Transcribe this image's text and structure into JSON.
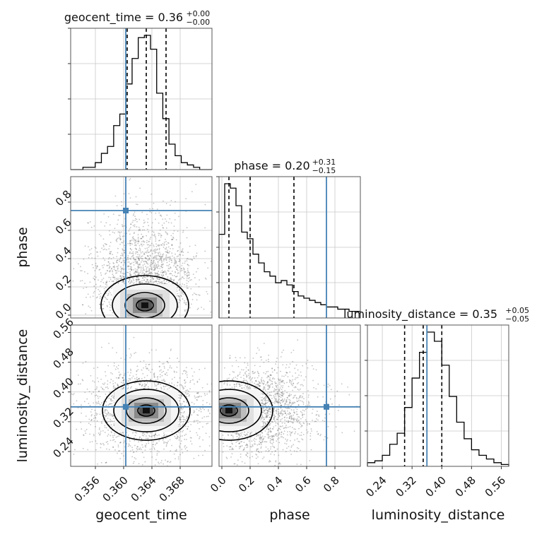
{
  "chart_data": {
    "type": "corner",
    "truth_color": "#4682b4",
    "parameters": [
      {
        "name": "geocent_time",
        "label": "geocent_time",
        "range": [
          0.3525,
          0.3725
        ],
        "ticks": [
          0.356,
          0.36,
          0.364,
          0.368
        ],
        "tick_labels": [
          "0.356",
          "0.360",
          "0.364",
          "0.368"
        ],
        "title": "geocent_time = 0.36",
        "title_plus": "+0.00",
        "title_minus": "−0.00",
        "quantiles": [
          0.3605,
          0.3632,
          0.366
        ],
        "truth": 0.3603,
        "histogram": [
          0,
          0,
          1,
          1,
          3,
          7,
          10,
          19,
          24,
          37,
          48,
          57,
          58,
          52,
          33,
          22,
          11,
          6,
          3,
          2,
          1,
          0,
          0
        ]
      },
      {
        "name": "phase",
        "label": "phase",
        "range": [
          -0.02,
          0.98
        ],
        "ticks": [
          0.0,
          0.2,
          0.4,
          0.6,
          0.8
        ],
        "tick_labels": [
          "0.0",
          "0.2",
          "0.4",
          "0.6",
          "0.8"
        ],
        "title": "phase = 0.20",
        "title_plus": "+0.31",
        "title_minus": "−0.15",
        "quantiles": [
          0.05,
          0.2,
          0.51
        ],
        "truth": 0.74,
        "histogram": [
          38,
          61,
          59,
          51,
          39,
          36,
          29,
          25,
          21,
          19,
          16,
          17,
          15,
          12,
          10,
          9,
          8,
          7,
          6,
          5,
          5,
          4,
          4,
          3,
          3
        ]
      },
      {
        "name": "luminosity_distance",
        "label": "luminosity_distance",
        "range": [
          0.2,
          0.58
        ],
        "ticks": [
          0.24,
          0.32,
          0.4,
          0.48,
          0.56
        ],
        "tick_labels": [
          "0.24",
          "0.32",
          "0.40",
          "0.48",
          "0.56"
        ],
        "title": "luminosity_distance = 0.35",
        "title_plus": "+0.05",
        "title_minus": "−0.05",
        "quantiles": [
          0.3,
          0.35,
          0.4
        ],
        "truth": 0.36,
        "histogram": [
          2,
          3,
          6,
          12,
          18,
          32,
          48,
          62,
          73,
          68,
          55,
          38,
          24,
          15,
          9,
          6,
          4,
          2,
          1
        ]
      }
    ],
    "yticks": {
      "phase": {
        "ticks": [
          0.0,
          0.2,
          0.4,
          0.6,
          0.8
        ],
        "tick_labels": [
          "0.0",
          "0.2",
          "0.4",
          "0.6",
          "0.8"
        ]
      },
      "luminosity_distance": {
        "ticks": [
          0.24,
          0.32,
          0.4,
          0.48,
          0.56
        ],
        "tick_labels": [
          "0.24",
          "0.32",
          "0.40",
          "0.48",
          "0.56"
        ]
      }
    },
    "density": [
      {
        "row": 1,
        "col": 0,
        "center": [
          0.363,
          0.07
        ],
        "spread": [
          0.0021,
          0.12
        ],
        "tail": [
          0.0,
          0.55
        ]
      },
      {
        "row": 2,
        "col": 0,
        "center": [
          0.3632,
          0.35
        ],
        "spread": [
          0.0025,
          0.035
        ],
        "tail": [
          0.0,
          0.0
        ]
      },
      {
        "row": 2,
        "col": 1,
        "center": [
          0.05,
          0.35
        ],
        "spread": [
          0.12,
          0.035
        ],
        "tail": [
          0.55,
          0.0
        ]
      }
    ],
    "grid": true
  }
}
